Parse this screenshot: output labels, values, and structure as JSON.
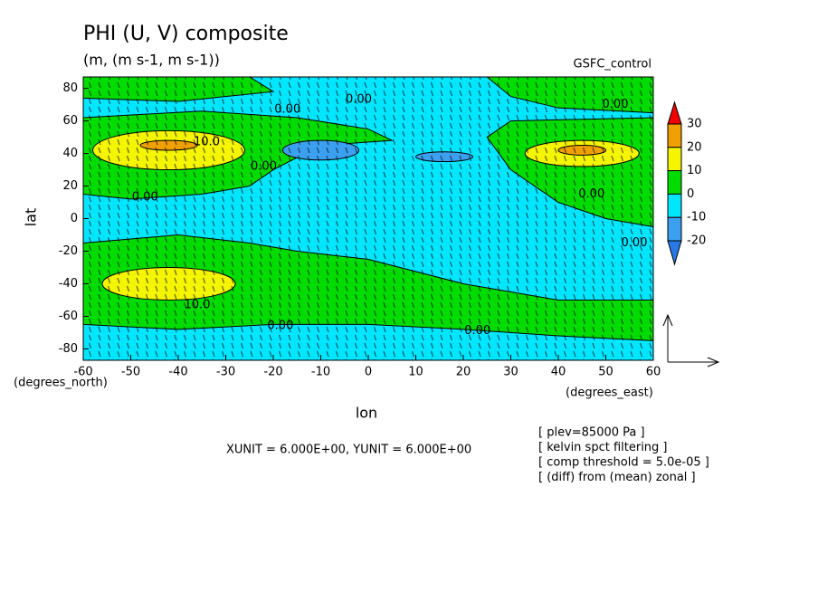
{
  "chart_data": {
    "type": "contour",
    "title": "PHI (U, V) composite",
    "subtitle": "(m, (m s-1, m s-1))",
    "source": "GSFC_control",
    "x_label": "lon",
    "y_label": "lat",
    "x_units": "(degrees_east)",
    "y_units": "(degrees_north)",
    "xlim": [
      -60,
      60
    ],
    "ylim": [
      -87,
      87
    ],
    "xticks": [
      -60,
      -50,
      -40,
      -30,
      -20,
      -10,
      0,
      10,
      20,
      30,
      40,
      50,
      60
    ],
    "yticks": [
      -80,
      -60,
      -40,
      -20,
      0,
      20,
      40,
      60,
      80
    ],
    "vector_units": "XUNIT = 6.000E+00, YUNIT = 6.000E+00",
    "notes": [
      "[ plev=85000 Pa ]",
      "[ kelvin spct filtering ]",
      "[ comp threshold = 5.0e-05 ]",
      "[ (diff) from (mean) zonal ]"
    ],
    "colorbar": {
      "levels": [
        30,
        20,
        10,
        0,
        -10,
        -20
      ],
      "colors": [
        "#f00000",
        "#f0a000",
        "#f5f500",
        "#00dc00",
        "#00e6ff",
        "#3ca0f0",
        "#2878e6"
      ]
    },
    "background_color": "#00e6ff",
    "polygons": [
      {
        "color": "#00dc00",
        "lon": [
          -60,
          -25,
          -20,
          -40,
          -60
        ],
        "lat": [
          87,
          87,
          78,
          72,
          74
        ]
      },
      {
        "color": "#00dc00",
        "lon": [
          -60,
          -35,
          -15,
          0,
          5,
          -10,
          -20,
          -25,
          -35,
          -50,
          -60
        ],
        "lat": [
          62,
          66,
          62,
          55,
          48,
          45,
          30,
          20,
          15,
          12,
          15
        ]
      },
      {
        "color": "#00dc00",
        "lon": [
          25,
          60,
          60,
          40,
          30
        ],
        "lat": [
          87,
          87,
          65,
          68,
          75
        ]
      },
      {
        "color": "#00dc00",
        "lon": [
          60,
          30,
          25,
          30,
          40,
          50,
          60
        ],
        "lat": [
          62,
          60,
          50,
          30,
          10,
          0,
          -5
        ]
      },
      {
        "color": "#00dc00",
        "lon": [
          -60,
          -40,
          -25,
          -15,
          0,
          20,
          40,
          60,
          60,
          40,
          20,
          0,
          -20,
          -40,
          -60
        ],
        "lat": [
          -15,
          -10,
          -15,
          -20,
          -25,
          -40,
          -50,
          -50,
          -75,
          -72,
          -68,
          -65,
          -65,
          -68,
          -65
        ]
      }
    ],
    "ellipses": [
      {
        "color": "#f5f500",
        "lon": -42,
        "lat": 42,
        "rlon": 16,
        "rlat": 12
      },
      {
        "color": "#f5f500",
        "lon": -42,
        "lat": -40,
        "rlon": 14,
        "rlat": 10
      },
      {
        "color": "#f5f500",
        "lon": 45,
        "lat": 40,
        "rlon": 12,
        "rlat": 8
      },
      {
        "color": "#f0a000",
        "lon": -42,
        "lat": 45,
        "rlon": 6,
        "rlat": 3
      },
      {
        "color": "#f0a000",
        "lon": 45,
        "lat": 42,
        "rlon": 5,
        "rlat": 3
      },
      {
        "color": "#3ca0f0",
        "lon": -10,
        "lat": 42,
        "rlon": 8,
        "rlat": 6
      },
      {
        "color": "#3ca0f0",
        "lon": 16,
        "lat": 38,
        "rlon": 6,
        "rlat": 3
      }
    ],
    "contour_labels": [
      {
        "text": "0.00",
        "lon": -2,
        "lat": 73
      },
      {
        "text": "0.00",
        "lon": -17,
        "lat": 67
      },
      {
        "text": "0.00",
        "lon": 52,
        "lat": 70
      },
      {
        "text": "0.00",
        "lon": -22,
        "lat": 32
      },
      {
        "text": "0.00",
        "lon": -47,
        "lat": 13
      },
      {
        "text": "0.00",
        "lon": 47,
        "lat": 15
      },
      {
        "text": "0.00",
        "lon": 56,
        "lat": -15
      },
      {
        "text": "0.00",
        "lon": -18.5,
        "lat": -66
      },
      {
        "text": "0.00",
        "lon": 23,
        "lat": -69
      },
      {
        "text": "10.0",
        "lon": -34,
        "lat": 47
      },
      {
        "text": "10.0",
        "lon": -36,
        "lat": -53
      }
    ]
  }
}
